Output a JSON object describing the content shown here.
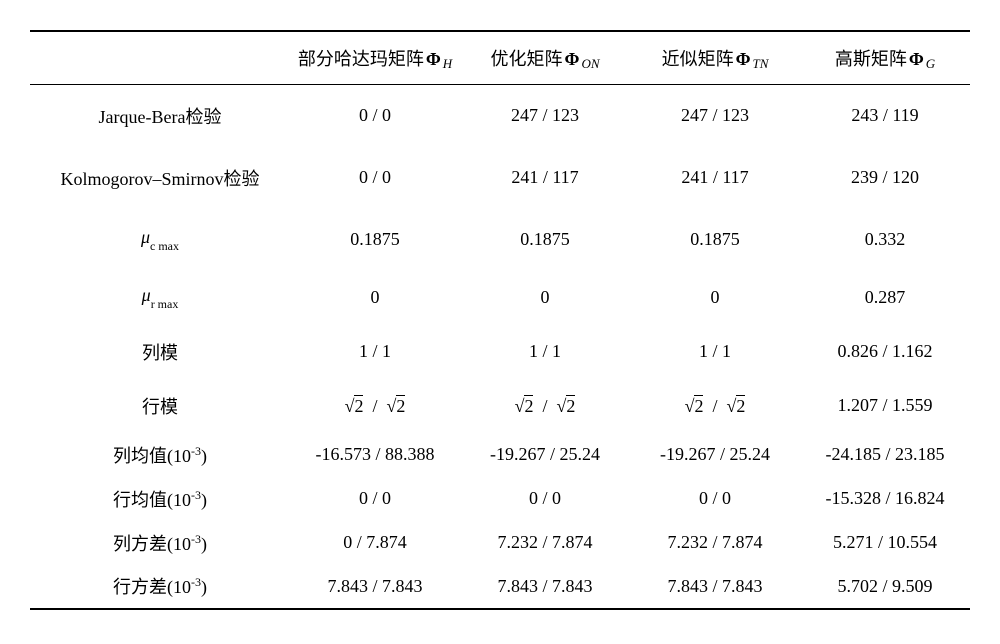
{
  "table": {
    "background": "#ffffff",
    "text_color": "#000000",
    "border_color": "#000000",
    "font_family": "Times New Roman, SimSun, serif",
    "base_fontsize": 18,
    "columns": [
      {
        "label_prefix": "部分哈达玛矩阵 ",
        "symbol": "Φ",
        "sub": "H"
      },
      {
        "label_prefix": "优化矩阵 ",
        "symbol": "Φ",
        "sub": "ON"
      },
      {
        "label_prefix": "近似矩阵 ",
        "symbol": "Φ",
        "sub": "TN"
      },
      {
        "label_prefix": "高斯矩阵 ",
        "symbol": "Φ",
        "sub": "G"
      }
    ],
    "rows": [
      {
        "label_type": "plain",
        "label": "Jarque-Bera检验",
        "cells": [
          "0 / 0",
          "247 / 123",
          "247 / 123",
          "243 / 119"
        ],
        "h": "r-tall"
      },
      {
        "label_type": "plain",
        "label": "Kolmogorov–Smirnov检验",
        "cells": [
          "0 / 0",
          "241 / 117",
          "241 / 117",
          "239 / 120"
        ],
        "h": "r-tall"
      },
      {
        "label_type": "mu",
        "mu_sub": "c max",
        "cells": [
          "0.1875",
          "0.1875",
          "0.1875",
          "0.332"
        ],
        "h": "r-tall"
      },
      {
        "label_type": "mu",
        "mu_sub": "r max",
        "cells": [
          "0",
          "0",
          "0",
          "0.287"
        ],
        "h": "r-med"
      },
      {
        "label_type": "plain",
        "label": "列模",
        "cells_type": "mix_sqrt",
        "cells": [
          {
            "t": "sqrt2_pair"
          },
          {
            "t": "sqrt2_pair"
          },
          {
            "t": "sqrt2_pair"
          },
          {
            "t": "text",
            "v": "0.826 / 1.162"
          }
        ],
        "h": "r-med",
        "prev": "1 / 1"
      },
      {
        "label_type": "plain",
        "label": "行模",
        "cells_type": "mix_sqrt",
        "cells": [
          {
            "t": "sqrt2_pair"
          },
          {
            "t": "sqrt2_pair"
          },
          {
            "t": "sqrt2_pair"
          },
          {
            "t": "text",
            "v": "1.207 / 1.559"
          }
        ],
        "h": "r-med"
      },
      {
        "label_type": "sup",
        "label_base": "列均值(10",
        "label_sup": "-3",
        "label_tail": ")",
        "cells": [
          "-16.573 / 88.388",
          "-19.267 / 25.24",
          "-19.267 / 25.24",
          "-24.185 / 23.185"
        ],
        "h": "r-short"
      },
      {
        "label_type": "sup",
        "label_base": "行均值(10",
        "label_sup": "-3",
        "label_tail": ")",
        "cells": [
          "0 / 0",
          "0 / 0",
          "0 / 0",
          "-15.328 / 16.824"
        ],
        "h": "r-short"
      },
      {
        "label_type": "sup",
        "label_base": "列方差(10",
        "label_sup": "-3",
        "label_tail": ")",
        "cells": [
          "0 / 7.874",
          "7.232 / 7.874",
          "7.232 / 7.874",
          "5.271 / 10.554"
        ],
        "h": "r-short"
      },
      {
        "label_type": "sup",
        "label_base": "行方差(10",
        "label_sup": "-3",
        "label_tail": ")",
        "cells": [
          "7.843 / 7.843",
          "7.843 / 7.843",
          "7.843 / 7.843",
          "5.702 / 9.509"
        ],
        "h": "r-short"
      }
    ],
    "note_row4_actually_plain_cells": [
      "1 / 1",
      "1 / 1",
      "1 / 1",
      "0.826 / 1.162"
    ]
  }
}
